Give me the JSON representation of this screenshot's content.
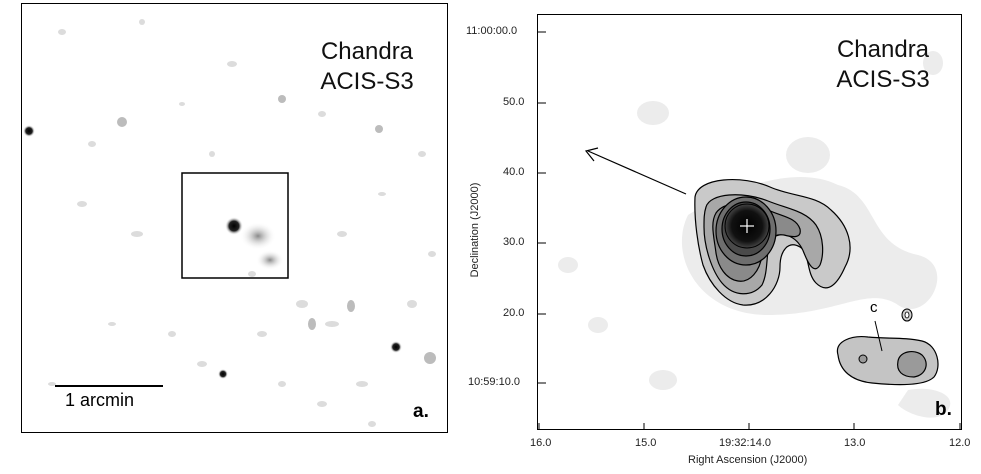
{
  "panel_a": {
    "instrument_line1": "Chandra",
    "instrument_line2": "ACIS-S3",
    "scale_label": "1 arcmin",
    "panel_label": "a."
  },
  "panel_b": {
    "instrument_line1": "Chandra",
    "instrument_line2": "ACIS-S3",
    "panel_label": "b.",
    "source_label": "c",
    "x_axis_title": "Right Ascension (J2000)",
    "y_axis_title": "Declination (J2000)",
    "x_ticks": [
      "16.0",
      "15.0",
      "19:32:14.0",
      "13.0",
      "12.0"
    ],
    "y_ticks": [
      "11:00:00.0",
      "50.0",
      "40.0",
      "30.0",
      "20.0",
      "10:59:10.0"
    ]
  }
}
